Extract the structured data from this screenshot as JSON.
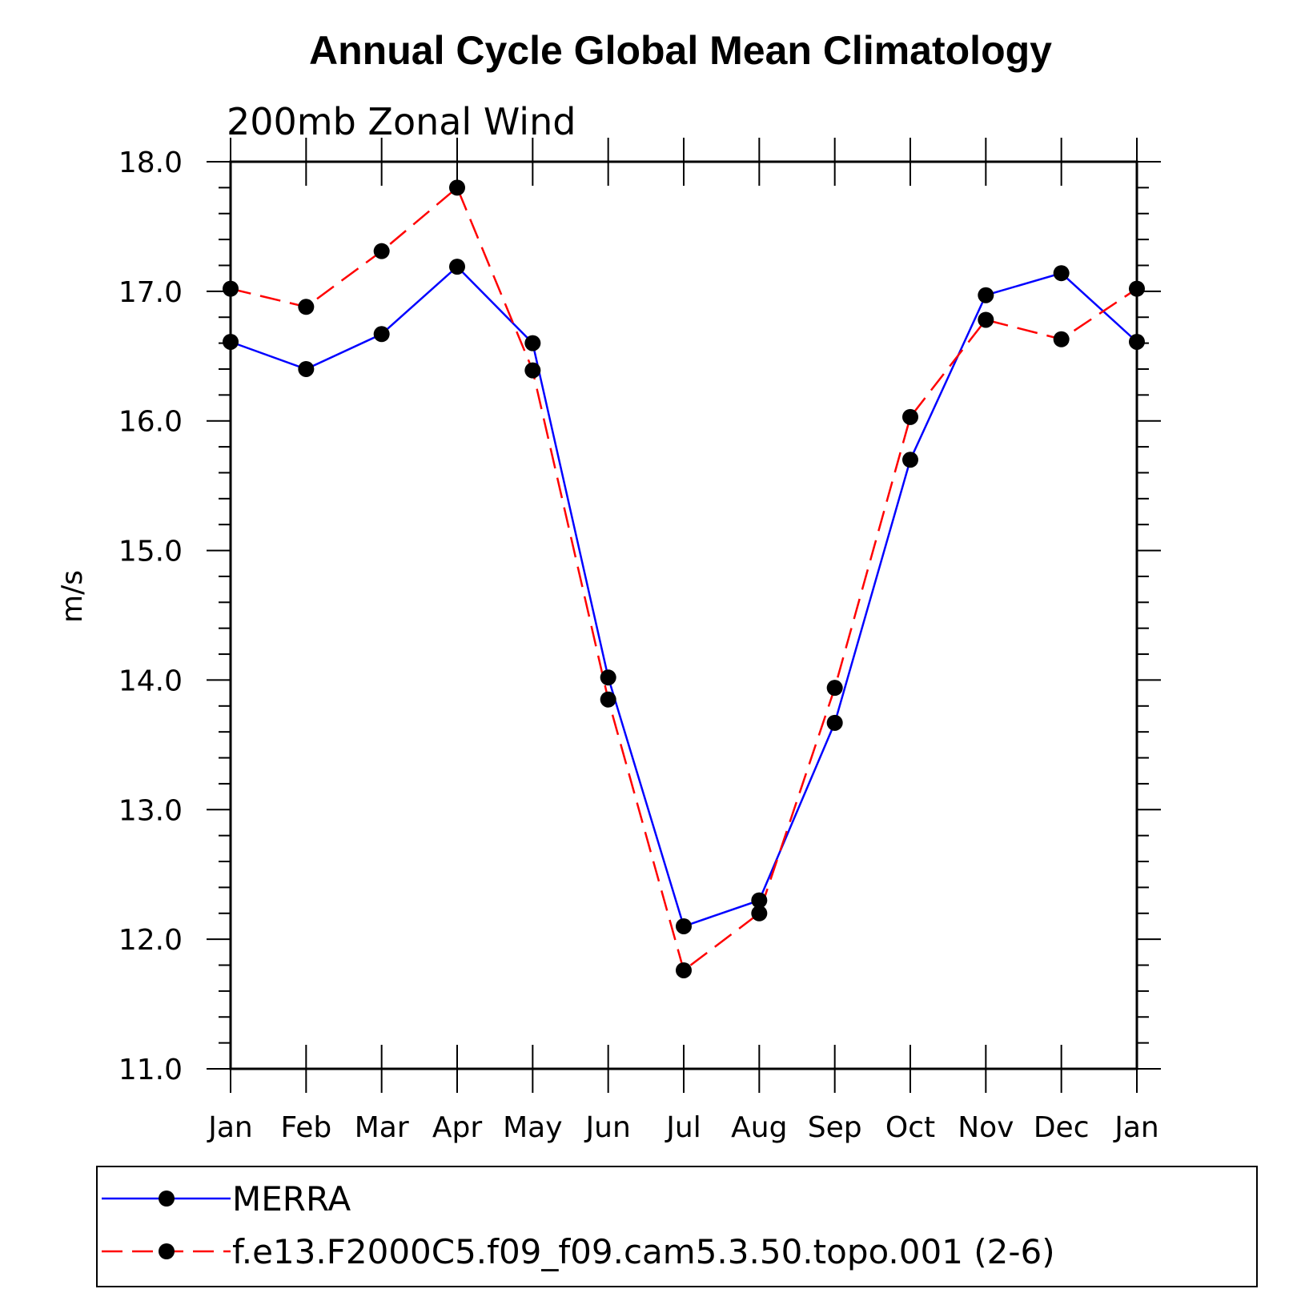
{
  "chart_data": {
    "type": "line",
    "title": "Annual Cycle Global Mean Climatology",
    "subtitle": "200mb  Zonal Wind",
    "xlabel": "",
    "ylabel": "m/s",
    "categories": [
      "Jan",
      "Feb",
      "Mar",
      "Apr",
      "May",
      "Jun",
      "Jul",
      "Aug",
      "Sep",
      "Oct",
      "Nov",
      "Dec",
      "Jan"
    ],
    "ylim": [
      11.0,
      18.0
    ],
    "yticks": [
      "11.0",
      "12.0",
      "13.0",
      "14.0",
      "15.0",
      "16.0",
      "17.0",
      "18.0"
    ],
    "grid": false,
    "legend_position": "bottom",
    "series": [
      {
        "name": "MERRA",
        "color": "#0000ff",
        "line_style": "solid",
        "marker_color": "#000000",
        "values": [
          16.61,
          16.4,
          16.67,
          17.19,
          16.6,
          14.02,
          12.1,
          12.3,
          13.67,
          15.7,
          16.97,
          17.14,
          16.61
        ]
      },
      {
        "name": "f.e13.F2000C5.f09_f09.cam5.3.50.topo.001 (2-6)",
        "color": "#ff0000",
        "line_style": "dashed",
        "marker_color": "#000000",
        "values": [
          17.02,
          16.88,
          17.31,
          17.8,
          16.39,
          13.85,
          11.76,
          12.2,
          13.94,
          16.03,
          16.78,
          16.63,
          17.02
        ]
      }
    ]
  }
}
